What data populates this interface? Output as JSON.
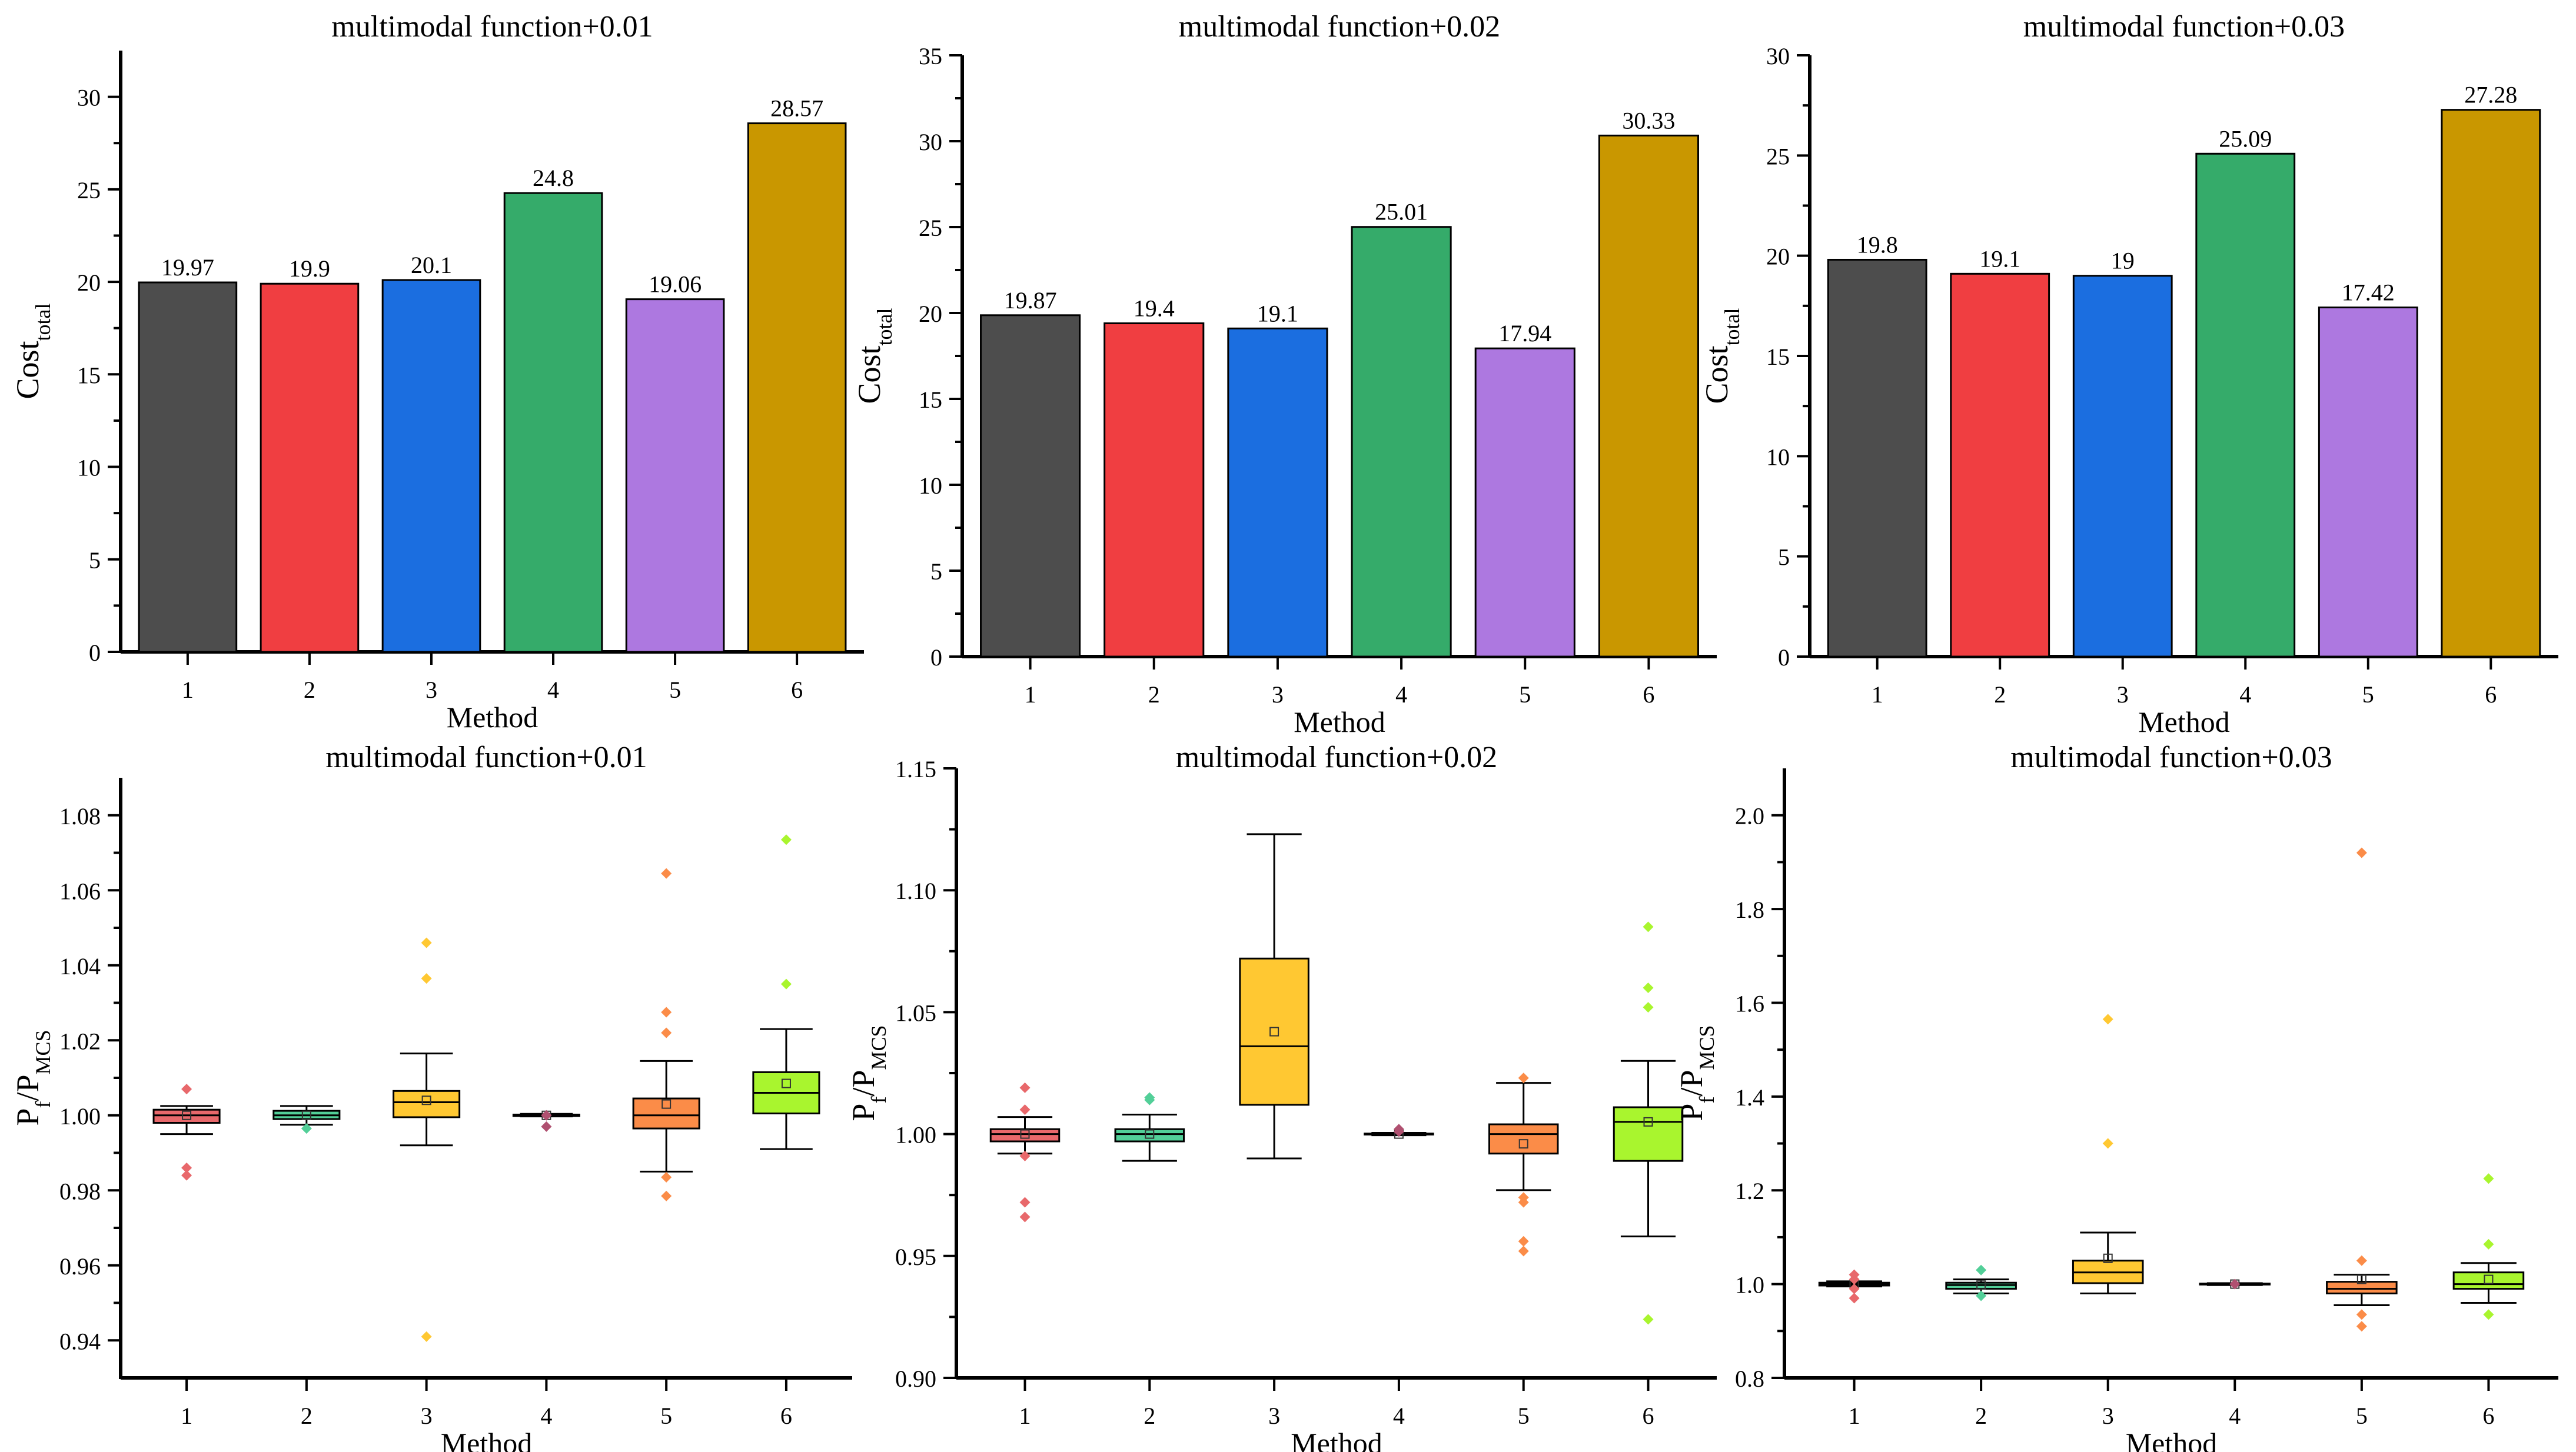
{
  "chart_data": [
    {
      "type": "bar",
      "title": "multimodal function+0.01",
      "xlabel": "Method",
      "ylabel": "Cost",
      "ylabel_sub": "total",
      "categories": [
        "1",
        "2",
        "3",
        "4",
        "5",
        "6"
      ],
      "values": [
        19.97,
        19.9,
        20.1,
        24.8,
        19.06,
        28.57
      ],
      "value_labels": [
        "19.97",
        "19.9",
        "20.1",
        "24.8",
        "19.06",
        "28.57"
      ],
      "ylim": [
        0,
        32.5
      ],
      "yticks": [
        0,
        5,
        10,
        15,
        20,
        25,
        30
      ],
      "colors": [
        "#4d4d4d",
        "#f03e41",
        "#1b6ee0",
        "#35ab6a",
        "#ad78e0",
        "#c99700"
      ]
    },
    {
      "type": "bar",
      "title": "multimodal function+0.02",
      "xlabel": "Method",
      "ylabel": "Cost",
      "ylabel_sub": "total",
      "categories": [
        "1",
        "2",
        "3",
        "4",
        "5",
        "6"
      ],
      "values": [
        19.87,
        19.4,
        19.1,
        25.01,
        17.94,
        30.33
      ],
      "value_labels": [
        "19.87",
        "19.4",
        "19.1",
        "25.01",
        "17.94",
        "30.33"
      ],
      "ylim": [
        0,
        35
      ],
      "yticks": [
        0,
        5,
        10,
        15,
        20,
        25,
        30,
        35
      ],
      "colors": [
        "#4d4d4d",
        "#f03e41",
        "#1b6ee0",
        "#35ab6a",
        "#ad78e0",
        "#c99700"
      ]
    },
    {
      "type": "bar",
      "title": "multimodal function+0.03",
      "xlabel": "Method",
      "ylabel": "Cost",
      "ylabel_sub": "total",
      "categories": [
        "1",
        "2",
        "3",
        "4",
        "5",
        "6"
      ],
      "values": [
        19.8,
        19.1,
        19,
        25.09,
        17.42,
        27.28
      ],
      "value_labels": [
        "19.8",
        "19.1",
        "19",
        "25.09",
        "17.42",
        "27.28"
      ],
      "ylim": [
        0,
        30
      ],
      "yticks": [
        0,
        5,
        10,
        15,
        20,
        25,
        30
      ],
      "colors": [
        "#4d4d4d",
        "#f03e41",
        "#1b6ee0",
        "#35ab6a",
        "#ad78e0",
        "#c99700"
      ]
    },
    {
      "type": "box",
      "title": "multimodal function+0.01",
      "xlabel": "Method",
      "ylabel": "P",
      "ylabel_sub1": "f",
      "ylabel_mid": "/P",
      "ylabel_sub2": "MCS",
      "categories": [
        "1",
        "2",
        "3",
        "4",
        "5",
        "6"
      ],
      "ylim": [
        0.93,
        1.09
      ],
      "yticks": [
        0.94,
        0.96,
        0.98,
        1.0,
        1.02,
        1.04,
        1.06,
        1.08
      ],
      "ytick_labels": [
        "0.94",
        "0.96",
        "0.98",
        "1.00",
        "1.02",
        "1.04",
        "1.06",
        "1.08"
      ],
      "colors": [
        "#e8686b",
        "#52cf98",
        "#ffc832",
        "#b05070",
        "#fb8c48",
        "#a9f52e"
      ],
      "boxes": [
        {
          "whisker_low": 0.995,
          "q1": 0.998,
          "median": 1.0,
          "q3": 1.0015,
          "whisker_high": 1.0025,
          "mean": 1.0,
          "outliers": [
            0.984,
            0.986,
            1.007
          ]
        },
        {
          "whisker_low": 0.9975,
          "q1": 0.999,
          "median": 1.0,
          "q3": 1.0012,
          "whisker_high": 1.0025,
          "mean": 1.0,
          "outliers": [
            0.9965
          ]
        },
        {
          "whisker_low": 0.992,
          "q1": 0.9995,
          "median": 1.0035,
          "q3": 1.0065,
          "whisker_high": 1.0165,
          "mean": 1.004,
          "outliers": [
            0.941,
            1.0365,
            1.046
          ]
        },
        {
          "whisker_low": 0.9997,
          "q1": 0.9998,
          "median": 1.0,
          "q3": 1.0002,
          "whisker_high": 1.0004,
          "mean": 1.0,
          "outliers": [
            0.997,
            1.0
          ]
        },
        {
          "whisker_low": 0.985,
          "q1": 0.9965,
          "median": 1.0,
          "q3": 1.0045,
          "whisker_high": 1.0145,
          "mean": 1.003,
          "outliers": [
            0.9785,
            0.9835,
            1.022,
            1.0275,
            1.0645
          ]
        },
        {
          "whisker_low": 0.991,
          "q1": 1.0005,
          "median": 1.006,
          "q3": 1.0115,
          "whisker_high": 1.023,
          "mean": 1.0085,
          "outliers": [
            1.035,
            1.0735
          ]
        }
      ]
    },
    {
      "type": "box",
      "title": "multimodal function+0.02",
      "xlabel": "Method",
      "ylabel": "P",
      "ylabel_sub1": "f",
      "ylabel_mid": "/P",
      "ylabel_sub2": "MCS",
      "categories": [
        "1",
        "2",
        "3",
        "4",
        "5",
        "6"
      ],
      "ylim": [
        0.9,
        1.15
      ],
      "yticks": [
        0.9,
        0.95,
        1.0,
        1.05,
        1.1,
        1.15
      ],
      "ytick_labels": [
        "0.90",
        "0.95",
        "1.00",
        "1.05",
        "1.10",
        "1.15"
      ],
      "colors": [
        "#e8686b",
        "#52cf98",
        "#ffc832",
        "#b05070",
        "#fb8c48",
        "#a9f52e"
      ],
      "boxes": [
        {
          "whisker_low": 0.992,
          "q1": 0.997,
          "median": 1.0,
          "q3": 1.002,
          "whisker_high": 1.007,
          "mean": 1.0,
          "outliers": [
            0.966,
            0.972,
            0.991,
            1.01,
            1.019
          ]
        },
        {
          "whisker_low": 0.989,
          "q1": 0.997,
          "median": 1.0,
          "q3": 1.002,
          "whisker_high": 1.008,
          "mean": 1.0,
          "outliers": [
            1.014,
            1.015
          ]
        },
        {
          "whisker_low": 0.99,
          "q1": 1.012,
          "median": 1.036,
          "q3": 1.072,
          "whisker_high": 1.123,
          "mean": 1.042,
          "outliers": []
        },
        {
          "whisker_low": 0.9995,
          "q1": 0.9998,
          "median": 1.0,
          "q3": 1.0002,
          "whisker_high": 1.0005,
          "mean": 1.0,
          "outliers": [
            1.001,
            1.002
          ]
        },
        {
          "whisker_low": 0.977,
          "q1": 0.992,
          "median": 1.0,
          "q3": 1.004,
          "whisker_high": 1.021,
          "mean": 0.996,
          "outliers": [
            0.952,
            0.956,
            0.972,
            0.974,
            1.023
          ]
        },
        {
          "whisker_low": 0.958,
          "q1": 0.989,
          "median": 1.005,
          "q3": 1.011,
          "whisker_high": 1.03,
          "mean": 1.005,
          "outliers": [
            0.924,
            1.052,
            1.06,
            1.085
          ]
        }
      ]
    },
    {
      "type": "box",
      "title": "multimodal function+0.03",
      "xlabel": "Method",
      "ylabel": "P",
      "ylabel_sub1": "f",
      "ylabel_mid": "/P",
      "ylabel_sub2": "MCS",
      "categories": [
        "1",
        "2",
        "3",
        "4",
        "5",
        "6"
      ],
      "ylim": [
        0.8,
        2.1
      ],
      "yticks": [
        0.8,
        1.0,
        1.2,
        1.4,
        1.6,
        1.8,
        2.0
      ],
      "ytick_labels": [
        "0.8",
        "1.0",
        "1.2",
        "1.4",
        "1.6",
        "1.8",
        "2.0"
      ],
      "colors": [
        "#e8686b",
        "#52cf98",
        "#ffc832",
        "#b05070",
        "#fb8c48",
        "#a9f52e"
      ],
      "boxes": [
        {
          "whisker_low": 0.995,
          "q1": 0.997,
          "median": 1.0,
          "q3": 1.003,
          "whisker_high": 1.006,
          "mean": 1.0,
          "outliers": [
            0.97,
            0.99,
            1.01,
            1.02
          ]
        },
        {
          "whisker_low": 0.98,
          "q1": 0.99,
          "median": 0.998,
          "q3": 1.003,
          "whisker_high": 1.01,
          "mean": 0.998,
          "outliers": [
            0.975,
            1.03
          ]
        },
        {
          "whisker_low": 0.98,
          "q1": 1.002,
          "median": 1.025,
          "q3": 1.05,
          "whisker_high": 1.11,
          "mean": 1.055,
          "outliers": [
            1.3,
            1.565
          ]
        },
        {
          "whisker_low": 0.998,
          "q1": 0.999,
          "median": 1.0,
          "q3": 1.001,
          "whisker_high": 1.002,
          "mean": 1.0,
          "outliers": [
            1.0
          ]
        },
        {
          "whisker_low": 0.955,
          "q1": 0.98,
          "median": 0.99,
          "q3": 1.005,
          "whisker_high": 1.02,
          "mean": 1.01,
          "outliers": [
            0.91,
            0.935,
            1.05,
            1.92
          ]
        },
        {
          "whisker_low": 0.96,
          "q1": 0.99,
          "median": 1.0,
          "q3": 1.025,
          "whisker_high": 1.045,
          "mean": 1.01,
          "outliers": [
            0.935,
            1.085,
            1.225
          ]
        }
      ]
    }
  ]
}
